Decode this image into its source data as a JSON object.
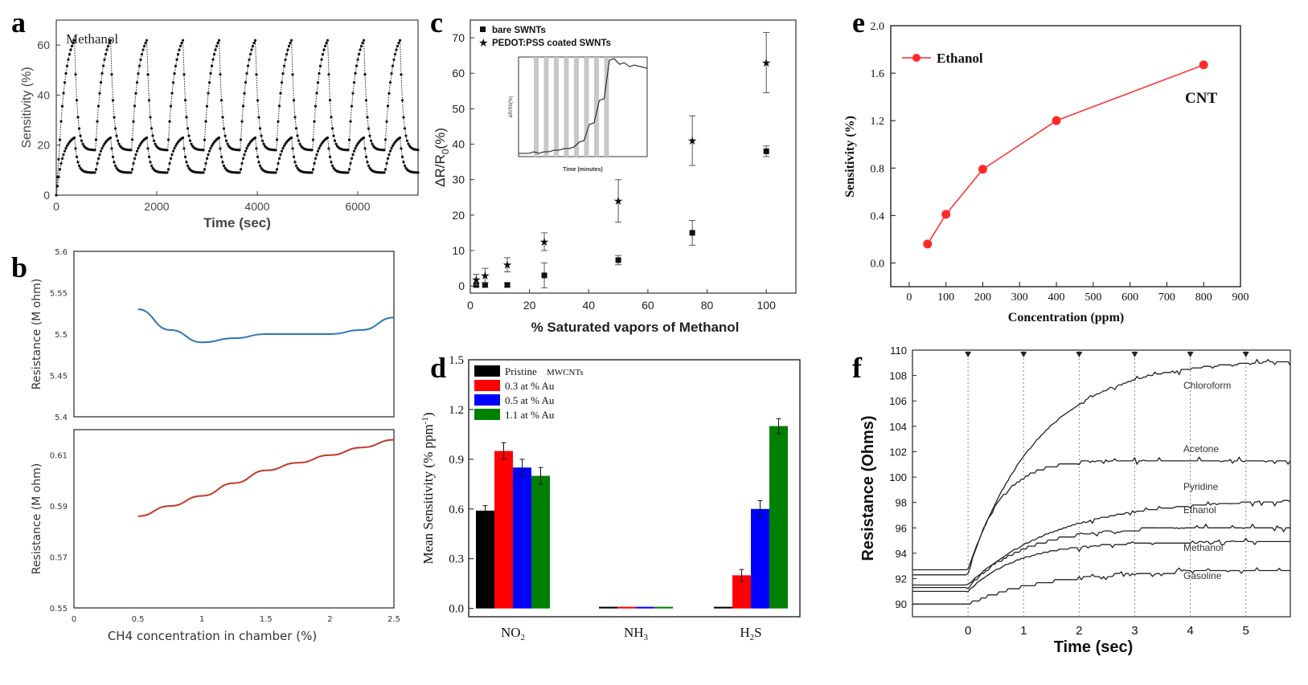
{
  "chart_data": [
    {
      "panel": "a",
      "type": "line",
      "annotation": "Methanol",
      "xlabel": "Time (sec)",
      "ylabel": "Sensitivity (%)",
      "xlim": [
        0,
        7200
      ],
      "ylim": [
        0,
        70
      ],
      "xticks": [
        "0",
        "2000",
        "4000",
        "6000"
      ],
      "yticks": [
        "0",
        "20",
        "40",
        "60"
      ],
      "cycle_sec": 720,
      "series": [
        {
          "name": "upper",
          "baseline": 18,
          "peak": 62,
          "start": 0
        },
        {
          "name": "lower",
          "baseline": 9,
          "peak": 23,
          "start": 0
        }
      ]
    },
    {
      "panel": "b",
      "type": "line",
      "xlabel": "CH4 concentration in chamber (%)",
      "xlim": [
        0,
        2.5
      ],
      "xticks": [
        "0",
        "0.5",
        "1",
        "1.5",
        "2",
        "2.5"
      ],
      "subplots": [
        {
          "ylabel": "Resistance (M ohm)",
          "ylim": [
            5.4,
            5.6
          ],
          "yticks": [
            "5.4",
            "5.45",
            "5.5",
            "5.55",
            "5.6"
          ],
          "color": "#2e75b6",
          "x": [
            0.5,
            0.75,
            1.0,
            1.25,
            1.5,
            1.75,
            2.0,
            2.25,
            2.5
          ],
          "y": [
            5.53,
            5.505,
            5.49,
            5.495,
            5.5,
            5.5,
            5.5,
            5.505,
            5.52
          ]
        },
        {
          "ylabel": "Resistance (M ohm)",
          "ylim": [
            0.55,
            0.62
          ],
          "yticks": [
            "0.55",
            "0.57",
            "0.59",
            "0.61"
          ],
          "color": "#c0392b",
          "x": [
            0.5,
            0.75,
            1.0,
            1.25,
            1.5,
            1.75,
            2.0,
            2.25,
            2.5
          ],
          "y": [
            0.586,
            0.59,
            0.594,
            0.599,
            0.604,
            0.607,
            0.61,
            0.613,
            0.616
          ]
        }
      ]
    },
    {
      "panel": "c",
      "type": "scatter",
      "xlabel": "% Saturated vapors of Methanol",
      "ylabel": "ΔR/R",
      "ylabel_sub": "0",
      "ylabel_suffix": "(%)",
      "xlim": [
        0,
        110
      ],
      "ylim": [
        -2,
        75
      ],
      "xticks": [
        "0",
        "20",
        "40",
        "60",
        "80",
        "100"
      ],
      "yticks": [
        "0",
        "10",
        "20",
        "30",
        "40",
        "50",
        "60",
        "70"
      ],
      "series": [
        {
          "name": "bare SWNTs",
          "marker": "square",
          "x": [
            2,
            5,
            12.5,
            25,
            50,
            75,
            100
          ],
          "y": [
            0.3,
            0.3,
            0.3,
            3,
            7.3,
            15,
            38
          ],
          "err": [
            0.5,
            0.5,
            0.5,
            3.5,
            1.3,
            3.5,
            1.5
          ]
        },
        {
          "name": "PEDOT:PSS coated SWNTs",
          "marker": "star",
          "x": [
            2,
            5,
            12.5,
            25,
            50,
            75,
            100
          ],
          "y": [
            1.8,
            3,
            6,
            12.5,
            24,
            41,
            63
          ],
          "err": [
            1.5,
            2,
            2,
            2.5,
            6,
            7,
            8.5
          ]
        }
      ],
      "inset": {
        "xlabel": "Time (minutes)",
        "ylabel": "ΔR/R0(%)"
      }
    },
    {
      "panel": "d",
      "type": "bar",
      "ylabel": "Mean Sensitivity (% ppm",
      "ylabel_sup": "-1",
      "ylabel_end": ")",
      "ylim": [
        -0.05,
        1.5
      ],
      "yticks": [
        "0.0",
        "0.3",
        "0.6",
        "0.9",
        "1.2",
        "1.5"
      ],
      "categories": [
        "NO",
        "NH",
        "H"
      ],
      "category_subs": [
        "2",
        "3",
        "2"
      ],
      "category_tails": [
        "",
        "",
        "S"
      ],
      "series": [
        {
          "name": "Pristine",
          "color": "#000000",
          "values": [
            0.59,
            0.01,
            0.01
          ],
          "err": [
            0.03,
            0.0,
            0.0
          ]
        },
        {
          "name": "0.3 at % Au",
          "color": "#ff0000",
          "values": [
            0.95,
            0.01,
            0.2
          ],
          "err": [
            0.05,
            0.0,
            0.035
          ]
        },
        {
          "name": "0.5 at % Au",
          "color": "#0000ff",
          "values": [
            0.85,
            0.01,
            0.6
          ],
          "err": [
            0.05,
            0.0,
            0.05
          ]
        },
        {
          "name": "1.1 at % Au",
          "color": "#008000",
          "values": [
            0.8,
            0.01,
            1.1
          ],
          "err": [
            0.05,
            0.0,
            0.045
          ]
        }
      ],
      "legend_extra": "MWCNTs"
    },
    {
      "panel": "e",
      "type": "line",
      "xlabel": "Concentration (ppm)",
      "ylabel": "Sensitivity (%)",
      "xlim": [
        -50,
        900
      ],
      "ylim": [
        -0.2,
        2.0
      ],
      "xticks": [
        "0",
        "100",
        "200",
        "300",
        "400",
        "500",
        "600",
        "700",
        "800",
        "900"
      ],
      "yticks": [
        "0.0",
        "0.4",
        "0.8",
        "1.2",
        "1.6",
        "2.0"
      ],
      "annotation": "CNT",
      "series": [
        {
          "name": "Ethanol",
          "color": "#ff2a2a",
          "x": [
            50,
            100,
            200,
            400,
            800
          ],
          "y": [
            0.16,
            0.41,
            0.79,
            1.2,
            1.67
          ]
        }
      ]
    },
    {
      "panel": "f",
      "type": "line",
      "xlabel": "Time (sec)",
      "ylabel": "Resistance (Ohms)",
      "xlim": [
        -1,
        5.8
      ],
      "ylim": [
        89,
        110
      ],
      "xticks": [
        "0",
        "1",
        "2",
        "3",
        "4",
        "5"
      ],
      "yticks": [
        "90",
        "92",
        "94",
        "96",
        "98",
        "100",
        "102",
        "104",
        "106",
        "108",
        "110"
      ],
      "series": [
        {
          "name": "Chloroform",
          "start": 92.7,
          "end": 109.3,
          "tau": 1.3
        },
        {
          "name": "Acetone",
          "start": 92.3,
          "end": 101.4,
          "tau": 0.55
        },
        {
          "name": "Pyridine",
          "start": 91.5,
          "end": 98.3,
          "tau": 1.6
        },
        {
          "name": "Ethanol",
          "start": 91.3,
          "end": 96.1,
          "tau": 1.0
        },
        {
          "name": "Methanol",
          "start": 91.0,
          "end": 94.9,
          "tau": 0.9
        },
        {
          "name": "Gasoline",
          "start": 90.0,
          "end": 92.7,
          "tau": 1.4
        }
      ]
    }
  ],
  "panel_labels": [
    "a",
    "b",
    "c",
    "d",
    "e",
    "f"
  ]
}
